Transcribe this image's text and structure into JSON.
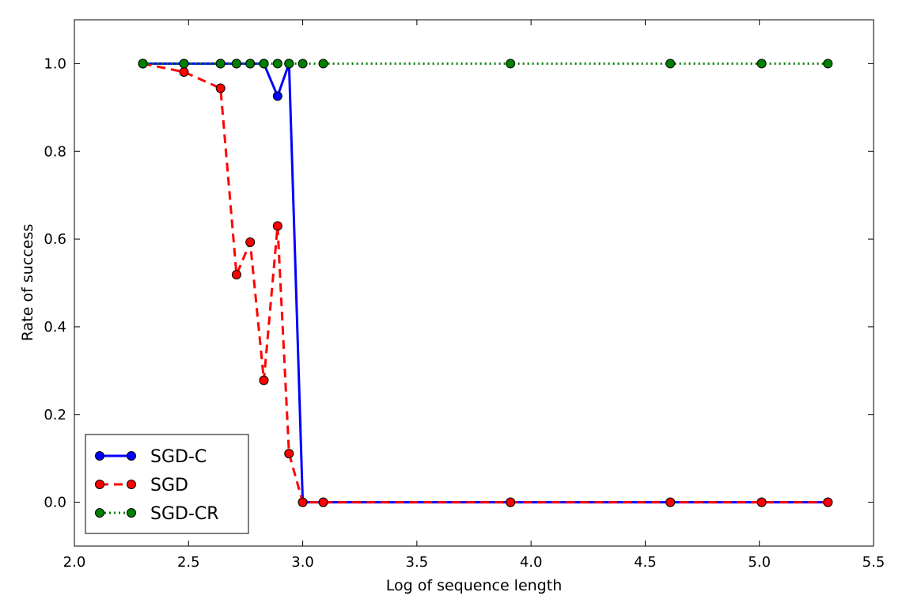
{
  "chart_data": {
    "type": "line",
    "title": "",
    "xlabel": "Log of sequence length",
    "ylabel": "Rate of success",
    "xlim": [
      2.0,
      5.5
    ],
    "ylim": [
      -0.1,
      1.1
    ],
    "xticks": [
      "2.0",
      "2.5",
      "3.0",
      "3.5",
      "4.0",
      "4.5",
      "5.0",
      "5.5"
    ],
    "yticks": [
      "0.0",
      "0.2",
      "0.4",
      "0.6",
      "0.8",
      "1.0"
    ],
    "grid": false,
    "legend_position": "lower-left",
    "series": [
      {
        "name": "SGD-C",
        "color": "#0000ff",
        "line_style": "solid",
        "marker": "circle",
        "x": [
          2.3,
          2.48,
          2.64,
          2.71,
          2.77,
          2.83,
          2.89,
          2.94,
          3.0,
          3.09,
          3.91,
          4.61,
          5.01,
          5.3
        ],
        "y": [
          1.0,
          1.0,
          1.0,
          1.0,
          1.0,
          1.0,
          0.926,
          1.0,
          0.0,
          0.0,
          0.0,
          0.0,
          0.0,
          0.0
        ]
      },
      {
        "name": "SGD",
        "color": "#ff0000",
        "line_style": "dashed",
        "marker": "circle",
        "x": [
          2.3,
          2.48,
          2.64,
          2.71,
          2.77,
          2.83,
          2.89,
          2.94,
          3.0,
          3.09,
          3.91,
          4.61,
          5.01,
          5.3
        ],
        "y": [
          1.0,
          0.981,
          0.944,
          0.519,
          0.593,
          0.278,
          0.63,
          0.111,
          0.0,
          0.0,
          0.0,
          0.0,
          0.0,
          0.0
        ]
      },
      {
        "name": "SGD-CR",
        "color": "#008000",
        "line_style": "dotted",
        "marker": "circle",
        "x": [
          2.3,
          2.48,
          2.64,
          2.71,
          2.77,
          2.83,
          2.89,
          2.94,
          3.0,
          3.09,
          3.91,
          4.61,
          5.01,
          5.3
        ],
        "y": [
          1.0,
          1.0,
          1.0,
          1.0,
          1.0,
          1.0,
          1.0,
          1.0,
          1.0,
          1.0,
          1.0,
          1.0,
          1.0,
          1.0
        ]
      }
    ]
  }
}
